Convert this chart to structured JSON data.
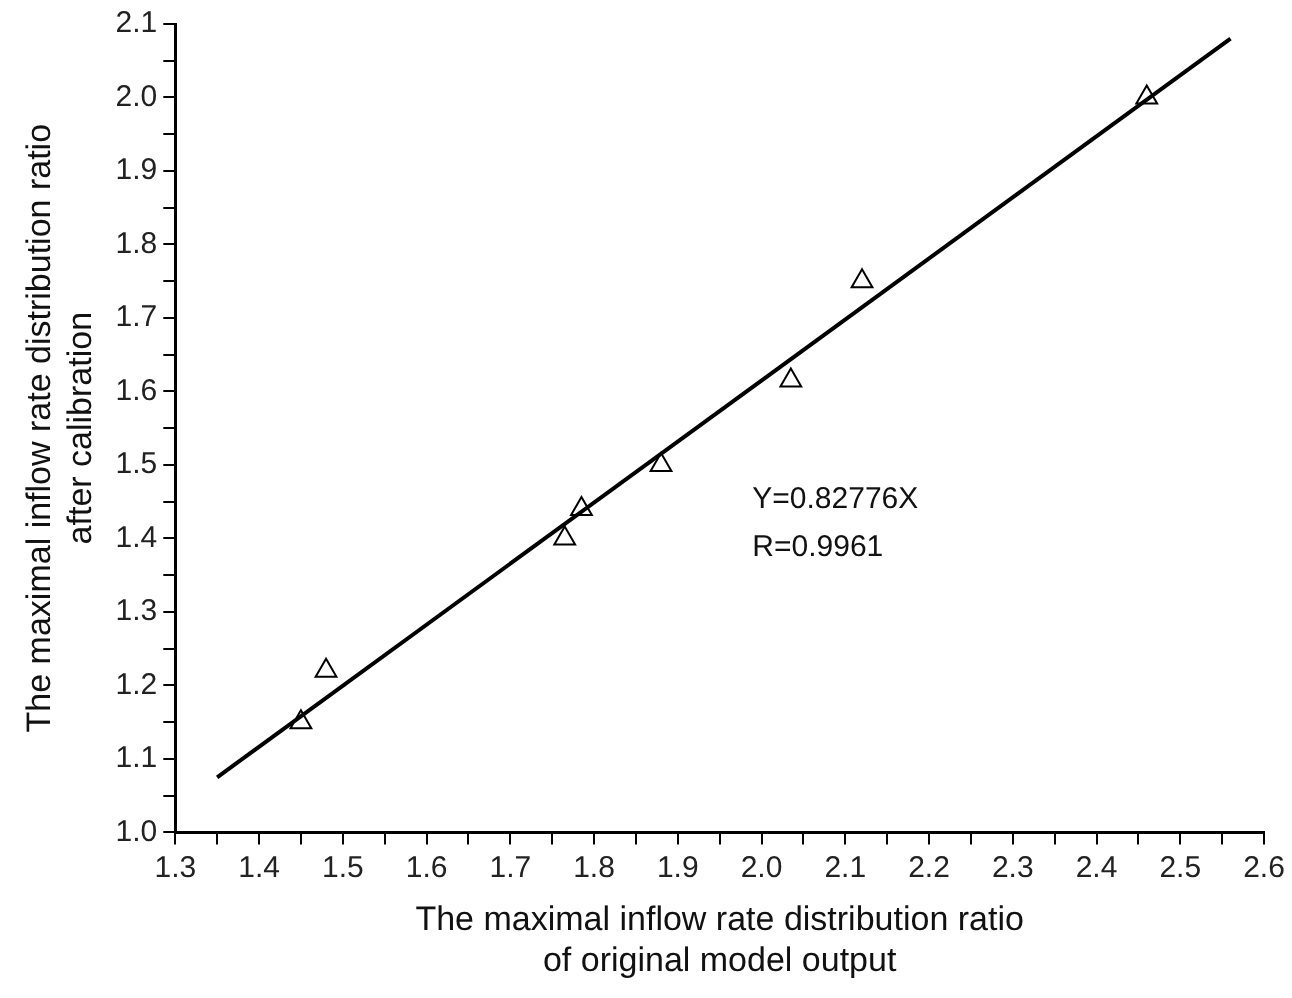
{
  "chart_data": {
    "type": "scatter",
    "xlabel": "The maximal inflow rate distribution ratio\nof original model output",
    "ylabel": "The maximal inflow rate distribution ratio\nafter calibration",
    "series": [
      {
        "color": "#000000",
        "marker": "triangle",
        "x": [
          1.45,
          1.48,
          1.765,
          1.785,
          1.88,
          2.035,
          2.12,
          2.46
        ],
        "values": [
          1.15,
          1.22,
          1.4,
          1.44,
          1.5,
          1.615,
          1.75,
          2.0
        ]
      },
      {
        "type": "line",
        "color": "#000000",
        "marker": "none",
        "line_style": "solid",
        "x": [
          1.35,
          2.56
        ],
        "values": [
          1.075,
          2.08
        ]
      }
    ],
    "xlim": [
      1.3,
      2.6
    ],
    "xticks": [
      1.3,
      {
        "value": 1.35,
        "label": null
      },
      1.4,
      {
        "value": 1.45,
        "label": null
      },
      1.5,
      {
        "value": 1.55,
        "label": null
      },
      1.6,
      {
        "value": 1.65,
        "label": null
      },
      1.7,
      {
        "value": 1.75,
        "label": null
      },
      1.8,
      {
        "value": 1.85,
        "label": null
      },
      1.9,
      {
        "value": 1.95,
        "label": null
      },
      {
        "value": 2.0,
        "label": "2.0"
      },
      {
        "value": 2.05,
        "label": null
      },
      2.1,
      {
        "value": 2.15,
        "label": null
      },
      2.2,
      {
        "value": 2.25,
        "label": null
      },
      2.3,
      {
        "value": 2.35,
        "label": null
      },
      2.4,
      {
        "value": 2.45,
        "label": null
      },
      2.5,
      {
        "value": 2.55,
        "label": null
      },
      2.6
    ],
    "ylim": [
      1.0,
      2.1
    ],
    "yticks": [
      {
        "value": 1.0,
        "label": "1.0"
      },
      {
        "value": 1.05,
        "label": null
      },
      1.1,
      {
        "value": 1.15,
        "label": null
      },
      1.2,
      {
        "value": 1.25,
        "label": null
      },
      1.3,
      {
        "value": 1.35,
        "label": null
      },
      1.4,
      {
        "value": 1.45,
        "label": null
      },
      1.5,
      {
        "value": 1.55,
        "label": null
      },
      1.6,
      {
        "value": 1.65,
        "label": null
      },
      1.7,
      {
        "value": 1.75,
        "label": null
      },
      1.8,
      {
        "value": 1.85,
        "label": null
      },
      1.9,
      {
        "value": 1.95,
        "label": null
      },
      {
        "value": 2.0,
        "label": "2.0"
      },
      {
        "value": 2.05,
        "label": null
      },
      2.1
    ],
    "annotations": [
      "Y=0.82776X",
      "R=0.9961"
    ],
    "grid": false,
    "legend": false
  }
}
